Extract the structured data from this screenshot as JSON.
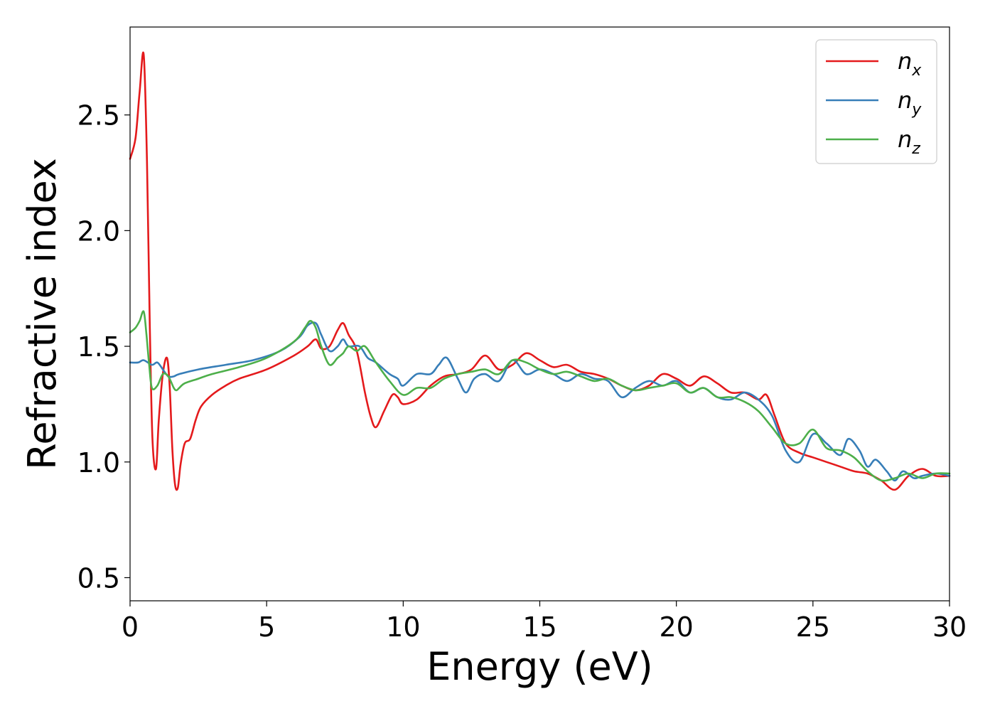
{
  "chart_data": {
    "type": "line",
    "title": "",
    "xlabel": "Energy (eV)",
    "ylabel": "Refractive index",
    "xlim": [
      0,
      30
    ],
    "ylim": [
      0.4,
      2.88
    ],
    "xticks": [
      0,
      5,
      10,
      15,
      20,
      25,
      30
    ],
    "yticks": [
      0.5,
      1.0,
      1.5,
      2.0,
      2.5
    ],
    "xtick_labels": [
      "0",
      "5",
      "10",
      "15",
      "20",
      "25",
      "30"
    ],
    "ytick_labels": [
      "0.5",
      "1.0",
      "1.5",
      "2.0",
      "2.5"
    ],
    "grid": false,
    "legend_position": "top-right",
    "series": [
      {
        "name": "n",
        "subscript": "x",
        "color": "#e41a1c",
        "x": [
          0,
          0.2,
          0.35,
          0.5,
          0.62,
          0.72,
          0.82,
          0.95,
          1.05,
          1.2,
          1.35,
          1.45,
          1.55,
          1.65,
          1.75,
          1.85,
          2.0,
          2.2,
          2.4,
          2.6,
          3.0,
          3.5,
          4.0,
          5.0,
          6.0,
          6.5,
          6.8,
          7.0,
          7.3,
          7.6,
          7.8,
          8.0,
          8.3,
          8.6,
          8.8,
          9.0,
          9.3,
          9.6,
          9.8,
          10.0,
          10.5,
          11.0,
          11.5,
          12.0,
          12.5,
          13.0,
          13.5,
          14.0,
          14.5,
          15.0,
          15.5,
          16.0,
          16.5,
          17.0,
          17.5,
          18.0,
          18.5,
          19.0,
          19.5,
          20.0,
          20.5,
          21.0,
          21.5,
          22.0,
          22.5,
          23.0,
          23.3,
          23.6,
          24.0,
          24.5,
          25.0,
          25.5,
          26.0,
          26.5,
          27.0,
          27.5,
          28.0,
          28.5,
          29.0,
          29.5,
          30.0
        ],
        "y": [
          2.31,
          2.4,
          2.6,
          2.76,
          2.3,
          1.6,
          1.1,
          0.97,
          1.18,
          1.38,
          1.45,
          1.33,
          1.05,
          0.9,
          0.89,
          0.99,
          1.08,
          1.1,
          1.18,
          1.24,
          1.29,
          1.33,
          1.36,
          1.4,
          1.46,
          1.5,
          1.53,
          1.49,
          1.5,
          1.57,
          1.6,
          1.55,
          1.48,
          1.3,
          1.2,
          1.15,
          1.22,
          1.29,
          1.28,
          1.25,
          1.27,
          1.33,
          1.37,
          1.38,
          1.4,
          1.46,
          1.4,
          1.42,
          1.47,
          1.44,
          1.41,
          1.42,
          1.39,
          1.38,
          1.36,
          1.33,
          1.31,
          1.33,
          1.38,
          1.36,
          1.33,
          1.37,
          1.34,
          1.3,
          1.3,
          1.27,
          1.29,
          1.2,
          1.08,
          1.04,
          1.02,
          1.0,
          0.98,
          0.96,
          0.95,
          0.92,
          0.88,
          0.94,
          0.97,
          0.94,
          0.94
        ]
      },
      {
        "name": "n",
        "subscript": "y",
        "color": "#377eb8",
        "x": [
          0,
          0.3,
          0.5,
          0.8,
          1.0,
          1.2,
          1.4,
          1.6,
          1.8,
          2.5,
          3.5,
          4.5,
          5.5,
          6.2,
          6.5,
          6.8,
          7.0,
          7.3,
          7.6,
          7.8,
          8.0,
          8.4,
          8.7,
          9.0,
          9.5,
          9.8,
          10.0,
          10.5,
          11.0,
          11.3,
          11.6,
          12.0,
          12.3,
          12.6,
          13.0,
          13.5,
          14.0,
          14.5,
          15.0,
          15.5,
          16.0,
          16.5,
          17.0,
          17.5,
          18.0,
          18.5,
          19.0,
          19.5,
          20.0,
          20.5,
          21.0,
          21.5,
          22.0,
          22.5,
          23.0,
          23.5,
          24.0,
          24.5,
          25.0,
          25.5,
          26.0,
          26.3,
          26.7,
          27.0,
          27.3,
          27.7,
          28.0,
          28.3,
          28.7,
          29.0,
          29.5,
          30.0
        ],
        "y": [
          1.43,
          1.43,
          1.44,
          1.42,
          1.43,
          1.4,
          1.37,
          1.37,
          1.38,
          1.4,
          1.42,
          1.44,
          1.48,
          1.54,
          1.59,
          1.6,
          1.55,
          1.48,
          1.5,
          1.53,
          1.5,
          1.5,
          1.45,
          1.43,
          1.38,
          1.36,
          1.33,
          1.38,
          1.38,
          1.42,
          1.45,
          1.36,
          1.3,
          1.36,
          1.38,
          1.35,
          1.44,
          1.38,
          1.4,
          1.38,
          1.35,
          1.38,
          1.36,
          1.35,
          1.28,
          1.32,
          1.35,
          1.33,
          1.35,
          1.3,
          1.32,
          1.28,
          1.27,
          1.3,
          1.27,
          1.2,
          1.05,
          1.0,
          1.12,
          1.08,
          1.03,
          1.1,
          1.05,
          0.98,
          1.01,
          0.96,
          0.92,
          0.96,
          0.93,
          0.94,
          0.95,
          0.94
        ]
      },
      {
        "name": "n",
        "subscript": "z",
        "color": "#4daf4a",
        "x": [
          0,
          0.2,
          0.35,
          0.5,
          0.6,
          0.7,
          0.8,
          1.0,
          1.2,
          1.4,
          1.6,
          1.7,
          1.8,
          2.0,
          2.5,
          3.0,
          4.0,
          5.0,
          6.0,
          6.4,
          6.6,
          6.8,
          7.0,
          7.3,
          7.6,
          7.8,
          8.0,
          8.3,
          8.6,
          9.0,
          9.5,
          10.0,
          10.5,
          11.0,
          11.5,
          12.0,
          12.5,
          13.0,
          13.5,
          14.0,
          14.5,
          15.0,
          15.5,
          16.0,
          16.5,
          17.0,
          17.5,
          18.0,
          18.5,
          19.0,
          19.5,
          20.0,
          20.5,
          21.0,
          21.5,
          22.0,
          22.5,
          23.0,
          23.5,
          24.0,
          24.5,
          25.0,
          25.5,
          26.0,
          26.5,
          27.0,
          27.5,
          28.0,
          28.5,
          29.0,
          29.5,
          30.0
        ],
        "y": [
          1.56,
          1.58,
          1.61,
          1.65,
          1.55,
          1.42,
          1.32,
          1.33,
          1.38,
          1.37,
          1.32,
          1.31,
          1.32,
          1.34,
          1.36,
          1.38,
          1.41,
          1.45,
          1.52,
          1.58,
          1.61,
          1.58,
          1.5,
          1.42,
          1.45,
          1.47,
          1.5,
          1.48,
          1.5,
          1.43,
          1.35,
          1.29,
          1.32,
          1.32,
          1.36,
          1.38,
          1.39,
          1.4,
          1.38,
          1.44,
          1.43,
          1.4,
          1.38,
          1.39,
          1.37,
          1.35,
          1.36,
          1.33,
          1.31,
          1.32,
          1.33,
          1.34,
          1.3,
          1.32,
          1.28,
          1.28,
          1.26,
          1.22,
          1.15,
          1.08,
          1.08,
          1.14,
          1.06,
          1.05,
          1.02,
          0.96,
          0.92,
          0.93,
          0.95,
          0.93,
          0.95,
          0.95
        ]
      }
    ]
  }
}
